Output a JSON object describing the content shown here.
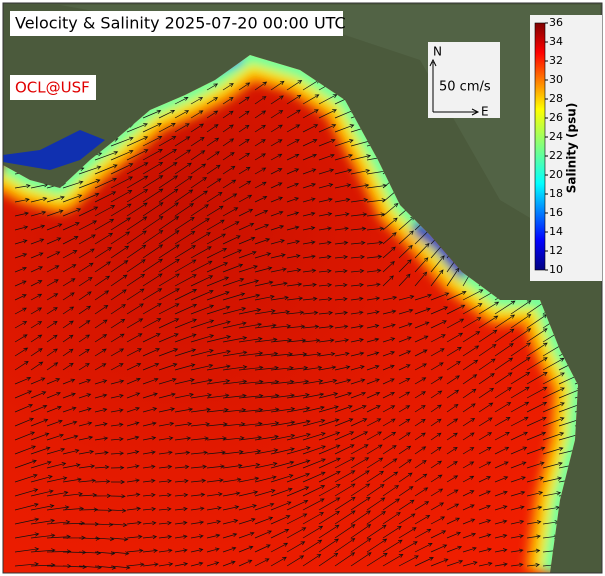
{
  "title": "Velocity & Salinity 2025-07-20 00:00 UTC",
  "logo": "OCL@USF",
  "scale_box": {
    "north": "N",
    "east": "E",
    "speed": "50 cm/s"
  },
  "colorbar": {
    "label": "Salinity (psu)",
    "lim": [
      10,
      36
    ],
    "ticks": [
      10,
      12,
      14,
      16,
      18,
      20,
      22,
      24,
      26,
      28,
      30,
      32,
      34,
      36
    ]
  }
}
